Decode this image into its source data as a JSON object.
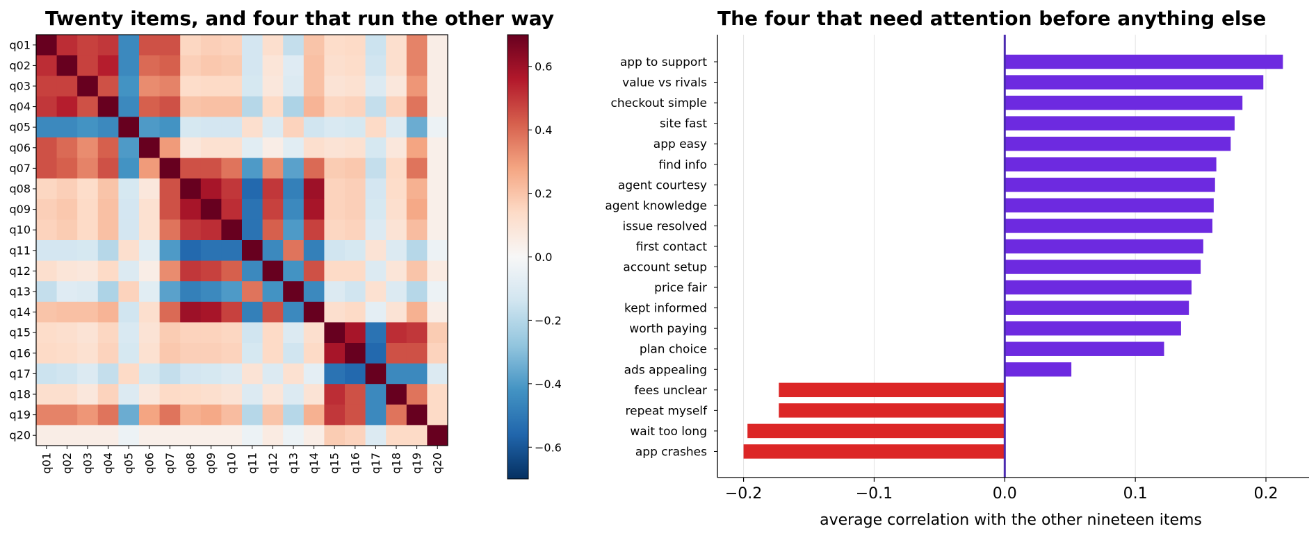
{
  "chart_data": [
    {
      "type": "heatmap",
      "title": "Twenty items, and four that run the other way",
      "rows": [
        "q01",
        "q02",
        "q03",
        "q04",
        "q05",
        "q06",
        "q07",
        "q08",
        "q09",
        "q10",
        "q11",
        "q12",
        "q13",
        "q14",
        "q15",
        "q16",
        "q17",
        "q18",
        "q19",
        "q20"
      ],
      "cols": [
        "q01",
        "q02",
        "q03",
        "q04",
        "q05",
        "q06",
        "q07",
        "q08",
        "q09",
        "q10",
        "q11",
        "q12",
        "q13",
        "q14",
        "q15",
        "q16",
        "q17",
        "q18",
        "q19",
        "q20"
      ],
      "values": [
        [
          1.0,
          0.52,
          0.48,
          0.5,
          -0.45,
          0.45,
          0.45,
          0.15,
          0.17,
          0.16,
          -0.13,
          0.12,
          -0.17,
          0.2,
          0.13,
          0.14,
          -0.15,
          0.12,
          0.35,
          0.05
        ],
        [
          0.52,
          1.0,
          0.48,
          0.55,
          -0.45,
          0.4,
          0.42,
          0.17,
          0.19,
          0.18,
          -0.13,
          0.09,
          -0.09,
          0.21,
          0.12,
          0.13,
          -0.14,
          0.12,
          0.35,
          0.05
        ],
        [
          0.48,
          0.48,
          1.0,
          0.45,
          -0.42,
          0.33,
          0.35,
          0.13,
          0.14,
          0.14,
          -0.12,
          0.08,
          -0.1,
          0.21,
          0.1,
          0.11,
          -0.1,
          0.08,
          0.31,
          0.05
        ],
        [
          0.5,
          0.55,
          0.45,
          1.0,
          -0.45,
          0.42,
          0.45,
          0.2,
          0.21,
          0.21,
          -0.2,
          0.14,
          -0.22,
          0.24,
          0.15,
          0.16,
          -0.17,
          0.16,
          0.38,
          0.05
        ],
        [
          -0.45,
          -0.45,
          -0.42,
          -0.45,
          1.0,
          -0.4,
          -0.42,
          -0.12,
          -0.13,
          -0.13,
          0.12,
          -0.1,
          0.16,
          -0.14,
          -0.11,
          -0.12,
          0.14,
          -0.1,
          -0.35,
          -0.04
        ],
        [
          0.45,
          0.4,
          0.33,
          0.42,
          -0.4,
          1.0,
          0.3,
          0.08,
          0.11,
          0.11,
          -0.08,
          0.05,
          -0.08,
          0.12,
          0.1,
          0.11,
          -0.12,
          0.08,
          0.28,
          0.04
        ],
        [
          0.45,
          0.42,
          0.35,
          0.45,
          -0.42,
          0.3,
          1.0,
          0.45,
          0.45,
          0.38,
          -0.4,
          0.33,
          -0.38,
          0.4,
          0.18,
          0.19,
          -0.17,
          0.14,
          0.38,
          0.04
        ],
        [
          0.15,
          0.17,
          0.13,
          0.2,
          -0.12,
          0.08,
          0.45,
          1.0,
          0.58,
          0.5,
          -0.55,
          0.5,
          -0.48,
          0.6,
          0.16,
          0.17,
          -0.13,
          0.13,
          0.25,
          0.04
        ],
        [
          0.17,
          0.19,
          0.14,
          0.21,
          -0.13,
          0.11,
          0.45,
          0.58,
          1.0,
          0.52,
          -0.52,
          0.48,
          -0.45,
          0.58,
          0.16,
          0.17,
          -0.12,
          0.12,
          0.27,
          0.04
        ],
        [
          0.16,
          0.18,
          0.14,
          0.21,
          -0.13,
          0.11,
          0.38,
          0.5,
          0.52,
          1.0,
          -0.52,
          0.42,
          -0.4,
          0.48,
          0.15,
          0.16,
          -0.1,
          0.1,
          0.22,
          0.04
        ],
        [
          -0.13,
          -0.13,
          -0.12,
          -0.2,
          0.12,
          -0.08,
          -0.4,
          -0.55,
          -0.52,
          -0.52,
          1.0,
          -0.45,
          0.38,
          -0.48,
          -0.14,
          -0.12,
          0.1,
          -0.1,
          -0.2,
          -0.04
        ],
        [
          0.12,
          0.09,
          0.08,
          0.14,
          -0.1,
          0.05,
          0.33,
          0.5,
          0.48,
          0.42,
          -0.45,
          1.0,
          -0.42,
          0.45,
          0.14,
          0.14,
          -0.1,
          0.09,
          0.2,
          0.06
        ],
        [
          -0.17,
          -0.09,
          -0.1,
          -0.22,
          0.16,
          -0.08,
          -0.38,
          -0.48,
          -0.45,
          -0.4,
          0.38,
          -0.42,
          1.0,
          -0.45,
          -0.1,
          -0.14,
          0.11,
          -0.1,
          -0.2,
          -0.04
        ],
        [
          0.2,
          0.21,
          0.21,
          0.24,
          -0.14,
          0.12,
          0.4,
          0.6,
          0.58,
          0.48,
          -0.48,
          0.45,
          -0.45,
          1.0,
          0.12,
          0.14,
          -0.07,
          0.1,
          0.25,
          0.05
        ],
        [
          0.13,
          0.12,
          0.1,
          0.15,
          -0.11,
          0.1,
          0.18,
          0.16,
          0.16,
          0.15,
          -0.14,
          0.14,
          -0.1,
          0.12,
          1.0,
          0.58,
          -0.52,
          0.52,
          0.5,
          0.18
        ],
        [
          0.14,
          0.13,
          0.11,
          0.16,
          -0.12,
          0.11,
          0.19,
          0.17,
          0.17,
          0.16,
          -0.12,
          0.14,
          -0.14,
          0.14,
          0.58,
          1.0,
          -0.55,
          0.45,
          0.45,
          0.16
        ],
        [
          -0.15,
          -0.14,
          -0.1,
          -0.17,
          0.14,
          -0.12,
          -0.17,
          -0.13,
          -0.12,
          -0.1,
          0.1,
          -0.1,
          0.11,
          -0.07,
          -0.52,
          -0.55,
          1.0,
          -0.45,
          -0.45,
          -0.1
        ],
        [
          0.12,
          0.12,
          0.08,
          0.16,
          -0.1,
          0.08,
          0.14,
          0.13,
          0.12,
          0.1,
          -0.1,
          0.09,
          -0.1,
          0.1,
          0.52,
          0.45,
          -0.45,
          1.0,
          0.38,
          0.14
        ],
        [
          0.35,
          0.35,
          0.31,
          0.38,
          -0.35,
          0.28,
          0.38,
          0.25,
          0.27,
          0.22,
          -0.2,
          0.2,
          -0.2,
          0.25,
          0.5,
          0.45,
          -0.45,
          0.38,
          1.0,
          0.14
        ],
        [
          0.05,
          0.05,
          0.05,
          0.05,
          -0.04,
          0.04,
          0.04,
          0.04,
          0.04,
          0.04,
          -0.04,
          0.06,
          -0.04,
          0.05,
          0.18,
          0.16,
          -0.1,
          0.14,
          0.14,
          1.0
        ]
      ],
      "colorbar": {
        "min": -0.7,
        "max": 0.7,
        "ticks": [
          -0.6,
          -0.4,
          -0.2,
          0.0,
          0.2,
          0.4,
          0.6
        ],
        "tick_labels": [
          "−0.6",
          "−0.4",
          "−0.2",
          "0.0",
          "0.2",
          "0.4",
          "0.6"
        ],
        "colormap": "RdBu_r"
      }
    },
    {
      "type": "bar",
      "orientation": "horizontal",
      "title": "The four that need attention before anything else",
      "xlabel": "average correlation with the other nineteen items",
      "categories": [
        "app to support",
        "value vs rivals",
        "checkout simple",
        "site fast",
        "app easy",
        "find info",
        "agent courtesy",
        "agent knowledge",
        "issue resolved",
        "first contact",
        "account setup",
        "price fair",
        "kept informed",
        "worth paying",
        "plan choice",
        "ads appealing",
        "fees unclear",
        "repeat myself",
        "wait too long",
        "app crashes"
      ],
      "values": [
        0.213,
        0.198,
        0.182,
        0.176,
        0.173,
        0.162,
        0.161,
        0.16,
        0.159,
        0.152,
        0.15,
        0.143,
        0.141,
        0.135,
        0.122,
        0.051,
        -0.173,
        -0.173,
        -0.197,
        -0.2
      ],
      "xlim": [
        -0.22,
        0.233
      ],
      "xticks": [
        -0.2,
        -0.1,
        0.0,
        0.1,
        0.2
      ],
      "xtick_labels": [
        "−0.2",
        "−0.1",
        "0.0",
        "0.1",
        "0.2"
      ],
      "colors": {
        "positive": "#6d2ae0",
        "negative": "#dc2626",
        "zero_line": "#4a2ab0"
      },
      "grid": "vertical"
    }
  ]
}
